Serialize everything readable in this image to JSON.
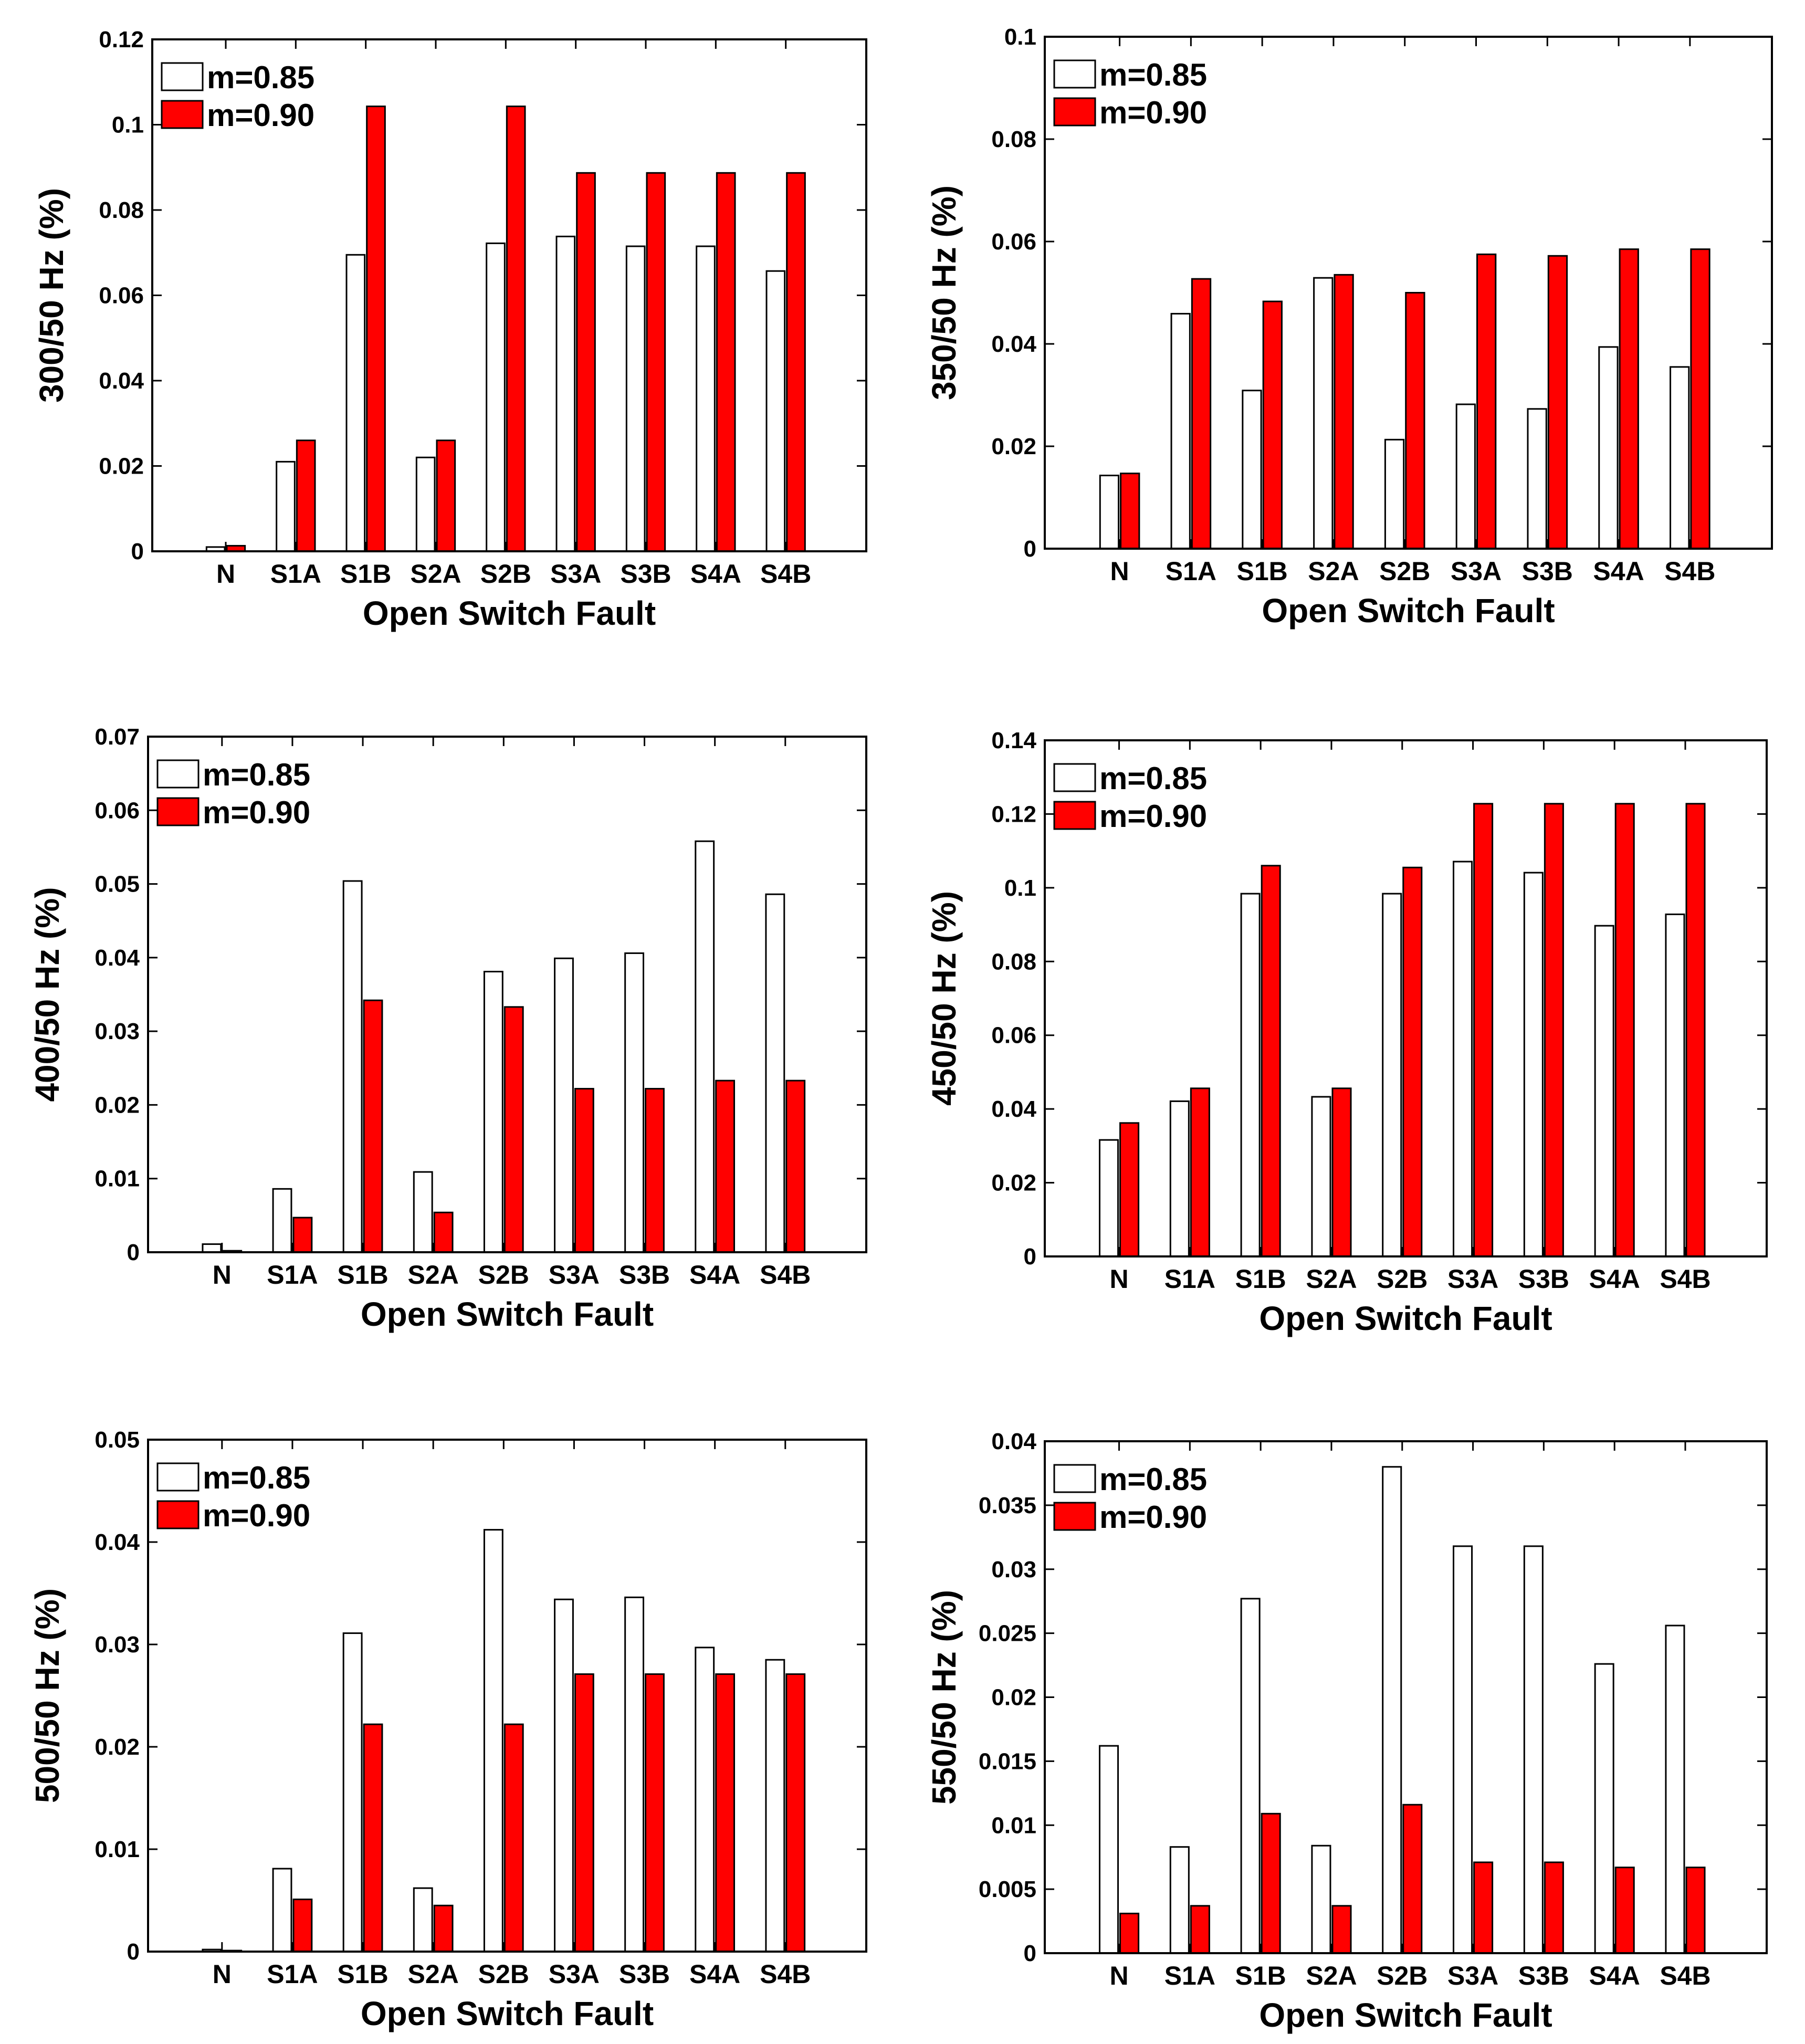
{
  "colors": {
    "m085": "#ffffff",
    "m090": "#ff0000",
    "axis": "#000000"
  },
  "chart_data": [
    {
      "type": "bar",
      "xlabel": "Open Switch Fault",
      "ylabel": "300/50 Hz (%)",
      "categories": [
        "N",
        "S1A",
        "S1B",
        "S2A",
        "S2B",
        "S3A",
        "S3B",
        "S4A",
        "S4B"
      ],
      "ylim": [
        0,
        0.12
      ],
      "yticks": [
        "0",
        "0.02",
        "0.04",
        "0.06",
        "0.08",
        "0.1",
        "0.12"
      ],
      "legend_position": "top-left",
      "series": [
        {
          "name": "m=0.85",
          "values": [
            0.001,
            0.021,
            0.0695,
            0.022,
            0.0722,
            0.0738,
            0.0715,
            0.0715,
            0.0657
          ]
        },
        {
          "name": "m=0.90",
          "values": [
            0.0013,
            0.026,
            0.1043,
            0.026,
            0.1043,
            0.0887,
            0.0887,
            0.0887,
            0.0887
          ]
        }
      ]
    },
    {
      "type": "bar",
      "xlabel": "Open Switch Fault",
      "ylabel": "350/50 Hz (%)",
      "categories": [
        "N",
        "S1A",
        "S1B",
        "S2A",
        "S2B",
        "S3A",
        "S3B",
        "S4A",
        "S4B"
      ],
      "ylim": [
        0,
        0.1
      ],
      "yticks": [
        "0",
        "0.02",
        "0.04",
        "0.06",
        "0.08",
        "0.1"
      ],
      "legend_position": "top-left",
      "series": [
        {
          "name": "m=0.85",
          "values": [
            0.0143,
            0.0459,
            0.0309,
            0.0529,
            0.0213,
            0.0282,
            0.0273,
            0.0394,
            0.0355
          ]
        },
        {
          "name": "m=0.90",
          "values": [
            0.0147,
            0.0527,
            0.0483,
            0.0535,
            0.05,
            0.0575,
            0.0572,
            0.0585,
            0.0585
          ]
        }
      ]
    },
    {
      "type": "bar",
      "xlabel": "Open Switch Fault",
      "ylabel": "400/50 Hz (%)",
      "categories": [
        "N",
        "S1A",
        "S1B",
        "S2A",
        "S2B",
        "S3A",
        "S3B",
        "S4A",
        "S4B"
      ],
      "ylim": [
        0,
        0.07
      ],
      "yticks": [
        "0",
        "0.01",
        "0.02",
        "0.03",
        "0.04",
        "0.05",
        "0.06",
        "0.07"
      ],
      "legend_position": "top-left",
      "series": [
        {
          "name": "m=0.85",
          "values": [
            0.0011,
            0.0086,
            0.0504,
            0.0109,
            0.0381,
            0.0399,
            0.0406,
            0.0558,
            0.0486
          ]
        },
        {
          "name": "m=0.90",
          "values": [
            0.0002,
            0.0047,
            0.0342,
            0.0054,
            0.0333,
            0.0222,
            0.0222,
            0.0233,
            0.0233
          ]
        }
      ]
    },
    {
      "type": "bar",
      "xlabel": "Open Switch Fault",
      "ylabel": "450/50 Hz (%)",
      "categories": [
        "N",
        "S1A",
        "S1B",
        "S2A",
        "S2B",
        "S3A",
        "S3B",
        "S4A",
        "S4B"
      ],
      "ylim": [
        0,
        0.14
      ],
      "yticks": [
        "0",
        "0.02",
        "0.04",
        "0.06",
        "0.08",
        "0.1",
        "0.12",
        "0.14"
      ],
      "legend_position": "top-left",
      "series": [
        {
          "name": "m=0.85",
          "values": [
            0.0316,
            0.0421,
            0.0984,
            0.0433,
            0.0984,
            0.1071,
            0.1041,
            0.0897,
            0.0928
          ]
        },
        {
          "name": "m=0.90",
          "values": [
            0.0362,
            0.0456,
            0.106,
            0.0456,
            0.1055,
            0.1228,
            0.1228,
            0.1228,
            0.1228
          ]
        }
      ]
    },
    {
      "type": "bar",
      "xlabel": "Open Switch Fault",
      "ylabel": "500/50 Hz (%)",
      "categories": [
        "N",
        "S1A",
        "S1B",
        "S2A",
        "S2B",
        "S3A",
        "S3B",
        "S4A",
        "S4B"
      ],
      "ylim": [
        0,
        0.05
      ],
      "yticks": [
        "0",
        "0.01",
        "0.02",
        "0.03",
        "0.04",
        "0.05"
      ],
      "legend_position": "top-left",
      "series": [
        {
          "name": "m=0.85",
          "values": [
            0.0002,
            0.0081,
            0.0311,
            0.0062,
            0.0412,
            0.0344,
            0.0346,
            0.0297,
            0.0285
          ]
        },
        {
          "name": "m=0.90",
          "values": [
            0.0001,
            0.0051,
            0.0222,
            0.0045,
            0.0222,
            0.0271,
            0.0271,
            0.0271,
            0.0271
          ]
        }
      ]
    },
    {
      "type": "bar",
      "xlabel": "Open Switch Fault",
      "ylabel": "550/50 Hz (%)",
      "categories": [
        "N",
        "S1A",
        "S1B",
        "S2A",
        "S2B",
        "S3A",
        "S3B",
        "S4A",
        "S4B"
      ],
      "ylim": [
        0,
        0.04
      ],
      "yticks": [
        "0",
        "0.005",
        "0.01",
        "0.015",
        "0.02",
        "0.025",
        "0.03",
        "0.035",
        "0.04"
      ],
      "legend_position": "top-left",
      "series": [
        {
          "name": "m=0.85",
          "values": [
            0.0162,
            0.0083,
            0.0277,
            0.0084,
            0.038,
            0.0318,
            0.0318,
            0.0226,
            0.0256
          ]
        },
        {
          "name": "m=0.90",
          "values": [
            0.0031,
            0.0037,
            0.0109,
            0.0037,
            0.0116,
            0.0071,
            0.0071,
            0.0067,
            0.0067
          ]
        }
      ]
    }
  ]
}
